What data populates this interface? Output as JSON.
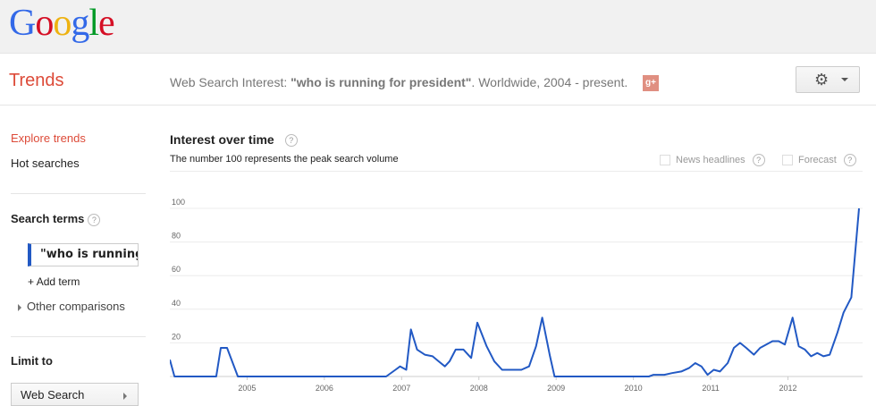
{
  "brand": {
    "logo_letters": [
      "G",
      "o",
      "o",
      "g",
      "l",
      "e"
    ],
    "logo_colors": [
      "#3369e8",
      "#d50f25",
      "#eeb211",
      "#3369e8",
      "#009925",
      "#d50f25"
    ]
  },
  "header": {
    "title": "Trends",
    "summary_prefix": "Web Search Interest: ",
    "summary_query": "\"who is running for president\"",
    "summary_suffix": ". Worldwide, 2004 - present.",
    "gplus_label": "g+",
    "settings_icon": "gear-icon"
  },
  "sidebar": {
    "explore": "Explore trends",
    "hot": "Hot searches",
    "search_terms_title": "Search terms",
    "term_value": "\"who is running for president\"",
    "add_term": "Add term",
    "other_comparisons": "Other comparisons",
    "limit_to": "Limit to",
    "limit_select": "Web Search"
  },
  "main": {
    "title": "Interest over time",
    "subtitle": "The number 100 represents the peak search volume",
    "news_headlines": "News headlines",
    "forecast": "Forecast",
    "help": "?"
  },
  "colors": {
    "accent": "#dd4b39",
    "line": "#2259c4"
  },
  "chart_data": {
    "type": "line",
    "ylim": [
      0,
      100
    ],
    "yticks": [
      "20",
      "40",
      "60",
      "80",
      "100"
    ],
    "xticks": [
      "2005",
      "2006",
      "2007",
      "2008",
      "2009",
      "2010",
      "2011",
      "2012"
    ],
    "xlim": [
      2004.0,
      2012.92
    ],
    "series": [
      {
        "values": [
          [
            2004.0,
            10
          ],
          [
            2004.06,
            0
          ],
          [
            2004.6,
            0
          ],
          [
            2004.66,
            17
          ],
          [
            2004.74,
            17
          ],
          [
            2004.88,
            0
          ],
          [
            2006.8,
            0
          ],
          [
            2006.92,
            4
          ],
          [
            2006.98,
            6
          ],
          [
            2007.06,
            4
          ],
          [
            2007.12,
            28
          ],
          [
            2007.2,
            16
          ],
          [
            2007.3,
            13
          ],
          [
            2007.4,
            12
          ],
          [
            2007.48,
            9
          ],
          [
            2007.56,
            6
          ],
          [
            2007.62,
            9
          ],
          [
            2007.7,
            16
          ],
          [
            2007.8,
            16
          ],
          [
            2007.9,
            11
          ],
          [
            2007.98,
            32
          ],
          [
            2008.1,
            18
          ],
          [
            2008.2,
            9
          ],
          [
            2008.3,
            4
          ],
          [
            2008.55,
            4
          ],
          [
            2008.65,
            6
          ],
          [
            2008.74,
            18
          ],
          [
            2008.82,
            35
          ],
          [
            2008.92,
            12
          ],
          [
            2008.98,
            0
          ],
          [
            2010.2,
            0
          ],
          [
            2010.26,
            1
          ],
          [
            2010.4,
            1
          ],
          [
            2010.5,
            2
          ],
          [
            2010.62,
            3
          ],
          [
            2010.72,
            5
          ],
          [
            2010.8,
            8
          ],
          [
            2010.88,
            6
          ],
          [
            2010.96,
            1
          ],
          [
            2011.04,
            4
          ],
          [
            2011.12,
            3
          ],
          [
            2011.22,
            8
          ],
          [
            2011.3,
            17
          ],
          [
            2011.38,
            20
          ],
          [
            2011.46,
            17
          ],
          [
            2011.56,
            13
          ],
          [
            2011.64,
            17
          ],
          [
            2011.72,
            19
          ],
          [
            2011.8,
            21
          ],
          [
            2011.88,
            21
          ],
          [
            2011.96,
            19
          ],
          [
            2012.06,
            35
          ],
          [
            2012.14,
            18
          ],
          [
            2012.22,
            16
          ],
          [
            2012.3,
            12
          ],
          [
            2012.38,
            14
          ],
          [
            2012.46,
            12
          ],
          [
            2012.54,
            13
          ],
          [
            2012.64,
            26
          ],
          [
            2012.72,
            38
          ],
          [
            2012.82,
            47
          ],
          [
            2012.92,
            100
          ]
        ]
      }
    ]
  }
}
